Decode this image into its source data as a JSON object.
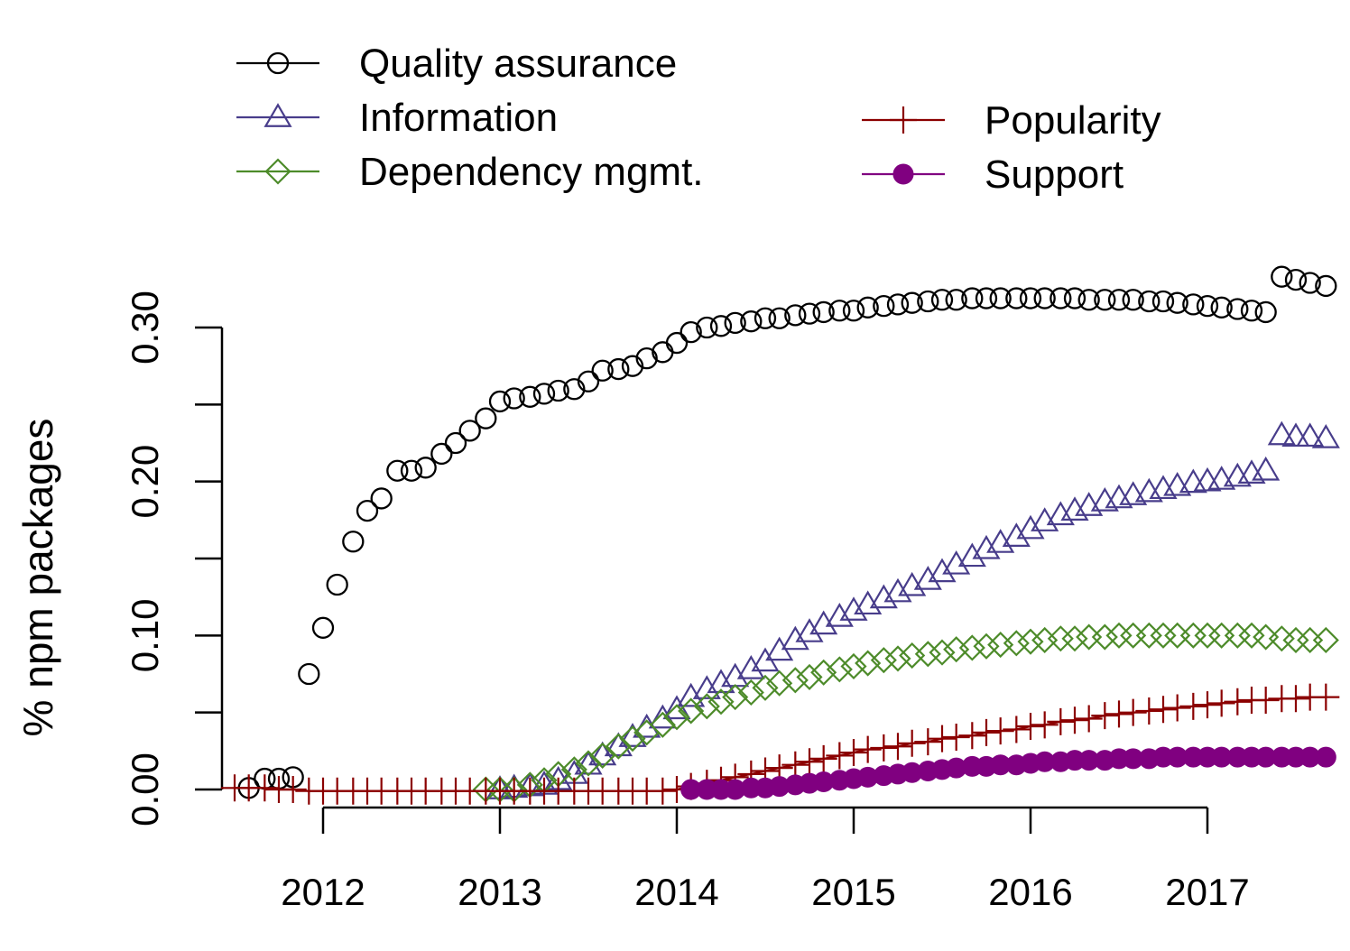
{
  "chart_data": {
    "type": "line",
    "title": "",
    "xlabel": "",
    "ylabel": "% npm packages",
    "x_ticks": [
      "2012",
      "2013",
      "2014",
      "2015",
      "2016",
      "2017"
    ],
    "y_ticks": [
      "0.00",
      "0.10",
      "0.20",
      "0.30"
    ],
    "y_minor_ticks": [
      0.05,
      0.15,
      0.25
    ],
    "xlim": [
      2011.45,
      2017.65
    ],
    "ylim": [
      0,
      0.3
    ],
    "legend_position": "top",
    "series": [
      {
        "name": "Quality assurance",
        "color": "#000000",
        "marker": "circle-open",
        "x": [
          2011.58,
          2011.67,
          2011.75,
          2011.83,
          2011.92,
          2012.0,
          2012.08,
          2012.17,
          2012.25,
          2012.33,
          2012.42,
          2012.5,
          2012.58,
          2012.67,
          2012.75,
          2012.83,
          2012.92,
          2013.0,
          2013.08,
          2013.17,
          2013.25,
          2013.33,
          2013.42,
          2013.5,
          2013.58,
          2013.67,
          2013.75,
          2013.83,
          2013.92,
          2014.0,
          2014.08,
          2014.17,
          2014.25,
          2014.33,
          2014.42,
          2014.5,
          2014.58,
          2014.67,
          2014.75,
          2014.83,
          2014.92,
          2015.0,
          2015.08,
          2015.17,
          2015.25,
          2015.33,
          2015.42,
          2015.5,
          2015.58,
          2015.67,
          2015.75,
          2015.83,
          2015.92,
          2016.0,
          2016.08,
          2016.17,
          2016.25,
          2016.33,
          2016.42,
          2016.5,
          2016.58,
          2016.67,
          2016.75,
          2016.83,
          2016.92,
          2017.0,
          2017.08,
          2017.17,
          2017.25,
          2017.33,
          2017.42,
          2017.5,
          2017.58,
          2017.67
        ],
        "y": [
          0.001,
          0.007,
          0.007,
          0.008,
          0.075,
          0.105,
          0.133,
          0.161,
          0.181,
          0.189,
          0.207,
          0.207,
          0.209,
          0.218,
          0.225,
          0.233,
          0.241,
          0.252,
          0.254,
          0.255,
          0.257,
          0.259,
          0.26,
          0.265,
          0.272,
          0.273,
          0.275,
          0.28,
          0.284,
          0.29,
          0.297,
          0.3,
          0.301,
          0.303,
          0.304,
          0.306,
          0.306,
          0.308,
          0.309,
          0.31,
          0.311,
          0.311,
          0.313,
          0.314,
          0.315,
          0.316,
          0.317,
          0.318,
          0.318,
          0.319,
          0.319,
          0.319,
          0.319,
          0.319,
          0.319,
          0.319,
          0.319,
          0.318,
          0.318,
          0.318,
          0.318,
          0.317,
          0.317,
          0.316,
          0.315,
          0.314,
          0.313,
          0.312,
          0.311,
          0.31,
          0.333,
          0.331,
          0.329,
          0.327
        ]
      },
      {
        "name": "Information",
        "color": "#483d8b",
        "marker": "triangle-open",
        "x": [
          2013.0,
          2013.08,
          2013.17,
          2013.25,
          2013.33,
          2013.42,
          2013.5,
          2013.58,
          2013.67,
          2013.75,
          2013.83,
          2013.92,
          2014.0,
          2014.08,
          2014.17,
          2014.25,
          2014.33,
          2014.42,
          2014.5,
          2014.58,
          2014.67,
          2014.75,
          2014.83,
          2014.92,
          2015.0,
          2015.08,
          2015.17,
          2015.25,
          2015.33,
          2015.42,
          2015.5,
          2015.58,
          2015.67,
          2015.75,
          2015.83,
          2015.92,
          2016.0,
          2016.08,
          2016.17,
          2016.25,
          2016.33,
          2016.42,
          2016.5,
          2016.58,
          2016.67,
          2016.75,
          2016.83,
          2016.92,
          2017.0,
          2017.08,
          2017.17,
          2017.25,
          2017.33,
          2017.42,
          2017.5,
          2017.58,
          2017.67
        ],
        "y": [
          0.0,
          0.001,
          0.002,
          0.003,
          0.006,
          0.01,
          0.016,
          0.022,
          0.028,
          0.034,
          0.04,
          0.046,
          0.052,
          0.06,
          0.065,
          0.069,
          0.073,
          0.078,
          0.083,
          0.09,
          0.097,
          0.102,
          0.107,
          0.112,
          0.116,
          0.12,
          0.124,
          0.128,
          0.132,
          0.136,
          0.141,
          0.146,
          0.151,
          0.156,
          0.16,
          0.164,
          0.169,
          0.174,
          0.178,
          0.181,
          0.184,
          0.187,
          0.189,
          0.191,
          0.193,
          0.195,
          0.197,
          0.199,
          0.2,
          0.201,
          0.203,
          0.205,
          0.207,
          0.23,
          0.229,
          0.229,
          0.228
        ]
      },
      {
        "name": "Dependency mgmt.",
        "color": "#4d8b2a",
        "marker": "diamond-open",
        "x": [
          2012.92,
          2013.0,
          2013.08,
          2013.17,
          2013.25,
          2013.33,
          2013.42,
          2013.5,
          2013.58,
          2013.67,
          2013.75,
          2013.83,
          2013.92,
          2014.0,
          2014.08,
          2014.17,
          2014.25,
          2014.33,
          2014.42,
          2014.5,
          2014.58,
          2014.67,
          2014.75,
          2014.83,
          2014.92,
          2015.0,
          2015.08,
          2015.17,
          2015.25,
          2015.33,
          2015.42,
          2015.5,
          2015.58,
          2015.67,
          2015.75,
          2015.83,
          2015.92,
          2016.0,
          2016.08,
          2016.17,
          2016.25,
          2016.33,
          2016.42,
          2016.5,
          2016.58,
          2016.67,
          2016.75,
          2016.83,
          2016.92,
          2017.0,
          2017.08,
          2017.17,
          2017.25,
          2017.33,
          2017.42,
          2017.5,
          2017.58,
          2017.67
        ],
        "y": [
          0.0,
          0.0,
          0.0,
          0.003,
          0.006,
          0.01,
          0.013,
          0.017,
          0.022,
          0.028,
          0.033,
          0.037,
          0.042,
          0.047,
          0.051,
          0.054,
          0.057,
          0.06,
          0.063,
          0.066,
          0.069,
          0.071,
          0.073,
          0.076,
          0.078,
          0.08,
          0.082,
          0.084,
          0.085,
          0.087,
          0.088,
          0.089,
          0.091,
          0.092,
          0.093,
          0.094,
          0.095,
          0.096,
          0.097,
          0.098,
          0.098,
          0.099,
          0.099,
          0.1,
          0.1,
          0.1,
          0.1,
          0.1,
          0.1,
          0.1,
          0.1,
          0.1,
          0.1,
          0.099,
          0.098,
          0.097,
          0.097,
          0.097
        ]
      },
      {
        "name": "Popularity",
        "color": "#8b0000",
        "marker": "plus",
        "x": [
          2011.5,
          2011.58,
          2011.67,
          2011.75,
          2011.83,
          2011.92,
          2012.0,
          2012.08,
          2012.17,
          2012.25,
          2012.33,
          2012.42,
          2012.5,
          2012.58,
          2012.67,
          2012.75,
          2012.83,
          2012.92,
          2013.0,
          2013.08,
          2013.17,
          2013.25,
          2013.33,
          2013.42,
          2013.5,
          2013.58,
          2013.67,
          2013.75,
          2013.83,
          2013.92,
          2014.0,
          2014.08,
          2014.17,
          2014.25,
          2014.33,
          2014.42,
          2014.5,
          2014.58,
          2014.67,
          2014.75,
          2014.83,
          2014.92,
          2015.0,
          2015.08,
          2015.17,
          2015.25,
          2015.33,
          2015.42,
          2015.5,
          2015.58,
          2015.67,
          2015.75,
          2015.83,
          2015.92,
          2016.0,
          2016.08,
          2016.17,
          2016.25,
          2016.33,
          2016.42,
          2016.5,
          2016.58,
          2016.67,
          2016.75,
          2016.83,
          2016.92,
          2017.0,
          2017.08,
          2017.17,
          2017.25,
          2017.33,
          2017.42,
          2017.5,
          2017.58,
          2017.67
        ],
        "y": [
          0.001,
          0.001,
          0.001,
          0.0,
          0.0,
          -0.001,
          -0.001,
          -0.001,
          -0.001,
          -0.001,
          -0.001,
          -0.001,
          -0.001,
          -0.001,
          -0.001,
          -0.001,
          -0.001,
          -0.001,
          -0.001,
          -0.001,
          -0.001,
          -0.001,
          -0.001,
          -0.001,
          -0.001,
          -0.001,
          -0.001,
          -0.001,
          -0.001,
          -0.001,
          0.0,
          0.002,
          0.004,
          0.006,
          0.008,
          0.01,
          0.012,
          0.014,
          0.016,
          0.018,
          0.02,
          0.022,
          0.024,
          0.026,
          0.027,
          0.028,
          0.03,
          0.031,
          0.033,
          0.034,
          0.035,
          0.037,
          0.038,
          0.039,
          0.041,
          0.042,
          0.044,
          0.045,
          0.046,
          0.048,
          0.049,
          0.05,
          0.051,
          0.052,
          0.053,
          0.054,
          0.055,
          0.056,
          0.057,
          0.058,
          0.058,
          0.059,
          0.059,
          0.06,
          0.06
        ]
      },
      {
        "name": "Support",
        "color": "#800080",
        "marker": "circle-filled",
        "x": [
          2014.08,
          2014.17,
          2014.25,
          2014.33,
          2014.42,
          2014.5,
          2014.58,
          2014.67,
          2014.75,
          2014.83,
          2014.92,
          2015.0,
          2015.08,
          2015.17,
          2015.25,
          2015.33,
          2015.42,
          2015.5,
          2015.58,
          2015.67,
          2015.75,
          2015.83,
          2015.92,
          2016.0,
          2016.08,
          2016.17,
          2016.25,
          2016.33,
          2016.42,
          2016.5,
          2016.58,
          2016.67,
          2016.75,
          2016.83,
          2016.92,
          2017.0,
          2017.08,
          2017.17,
          2017.25,
          2017.33,
          2017.42,
          2017.5,
          2017.58,
          2017.67
        ],
        "y": [
          0.0,
          0.0,
          0.0,
          0.0,
          0.001,
          0.001,
          0.002,
          0.003,
          0.004,
          0.005,
          0.006,
          0.007,
          0.008,
          0.009,
          0.01,
          0.011,
          0.012,
          0.013,
          0.014,
          0.015,
          0.015,
          0.016,
          0.016,
          0.017,
          0.018,
          0.018,
          0.019,
          0.019,
          0.019,
          0.02,
          0.02,
          0.02,
          0.021,
          0.021,
          0.021,
          0.021,
          0.021,
          0.021,
          0.021,
          0.021,
          0.021,
          0.021,
          0.021,
          0.021
        ]
      }
    ]
  }
}
